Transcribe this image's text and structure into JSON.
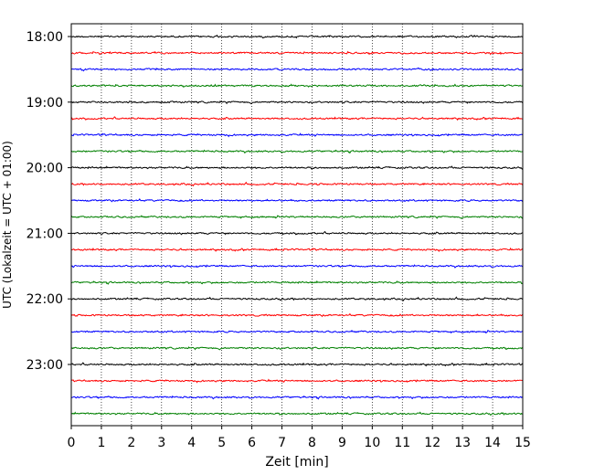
{
  "chart_data": {
    "type": "line",
    "xlabel": "Zeit  [min]",
    "ylabel": "UTC (Lokalzeit = UTC + 01:00)",
    "xlim": [
      0,
      15
    ],
    "x_ticks": [
      0,
      1,
      2,
      3,
      4,
      5,
      6,
      7,
      8,
      9,
      10,
      11,
      12,
      13,
      14,
      15
    ],
    "y_tick_labels": [
      "18:00",
      "19:00",
      "20:00",
      "21:00",
      "22:00",
      "23:00"
    ],
    "trace_interval_min": 15,
    "trace_start": "18:00",
    "trace_count": 24,
    "trace_colors": [
      "#000000",
      "#ff0000",
      "#0000ff",
      "#008000"
    ],
    "grid": {
      "vertical_dotted": true,
      "horizontal": false
    }
  }
}
